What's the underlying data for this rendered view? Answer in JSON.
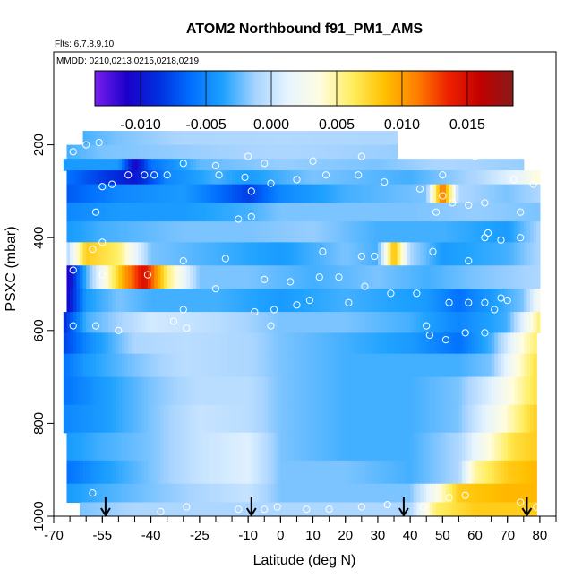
{
  "chart_data": {
    "type": "heatmap",
    "title": "ATOM2 Northbound f91_PM1_AMS",
    "flights_label": "Flts: 6,7,8,9,10",
    "dates_label": "MMDD: 0210,0213,0215,0218,0219",
    "xlabel": "Latitude (deg N)",
    "ylabel": "PSXC (mbar)",
    "xlim": [
      -70,
      85
    ],
    "ylim": [
      1000,
      0
    ],
    "x_tick_labels": [
      "-70",
      "-55",
      "-40",
      "-25",
      "-10",
      "0",
      "10",
      "20",
      "30",
      "40",
      "50",
      "60",
      "70",
      "80"
    ],
    "y_tick_labels": [
      "200",
      "400",
      "600",
      "800",
      "1000"
    ],
    "colorbar": {
      "range": [
        -0.0135,
        0.0185
      ],
      "tick_labels": [
        "-0.010",
        "-0.005",
        "0.000",
        "0.005",
        "0.010",
        "0.015"
      ],
      "colors": [
        "#7a1ef0",
        "#1a00c8",
        "#0030e0",
        "#0070ff",
        "#1fa2ff",
        "#a8d4ff",
        "#e6f4ff",
        "#fffde0",
        "#ffee60",
        "#ffc000",
        "#ff8000",
        "#ee2000",
        "#c00000",
        "#8a1a1a"
      ]
    },
    "arrow_latitudes": [
      -54,
      -9,
      38,
      76
    ],
    "pressure_bands": [
      {
        "p_top": 170,
        "p_bot": 200,
        "x_min": -61,
        "x_max": 36,
        "points": [
          [
            -61,
            -0.003
          ],
          [
            -50,
            -0.002
          ],
          [
            -30,
            -0.001
          ],
          [
            0,
            -0.0008
          ],
          [
            36,
            -0.001
          ]
        ]
      },
      {
        "p_top": 200,
        "p_bot": 230,
        "x_min": -66,
        "x_max": 36,
        "points": [
          [
            -66,
            -0.003
          ],
          [
            -55,
            -0.002
          ],
          [
            -30,
            -0.0015
          ],
          [
            0,
            -0.001
          ],
          [
            36,
            -0.0015
          ]
        ]
      },
      {
        "p_top": 230,
        "p_bot": 255,
        "x_min": -67,
        "x_max": 75,
        "points": [
          [
            -67,
            -0.004
          ],
          [
            -50,
            -0.004
          ],
          [
            -45,
            -0.011
          ],
          [
            -40,
            -0.006
          ],
          [
            -25,
            -0.0025
          ],
          [
            0,
            -0.0015
          ],
          [
            30,
            -0.002
          ],
          [
            50,
            -0.001
          ],
          [
            75,
            -0.0015
          ]
        ]
      },
      {
        "p_top": 255,
        "p_bot": 285,
        "x_min": -66,
        "x_max": 80,
        "points": [
          [
            -66,
            -0.006
          ],
          [
            -45,
            -0.01
          ],
          [
            -35,
            -0.005
          ],
          [
            -20,
            -0.003
          ],
          [
            -10,
            -0.004
          ],
          [
            10,
            -0.002
          ],
          [
            40,
            -0.003
          ],
          [
            60,
            -0.001
          ],
          [
            75,
            0.002
          ],
          [
            80,
            0.004
          ]
        ]
      },
      {
        "p_top": 285,
        "p_bot": 325,
        "x_min": -66,
        "x_max": 80,
        "points": [
          [
            -66,
            -0.007
          ],
          [
            -50,
            -0.005
          ],
          [
            -30,
            -0.004
          ],
          [
            -10,
            -0.008
          ],
          [
            0,
            -0.005
          ],
          [
            20,
            -0.003
          ],
          [
            45,
            -0.002
          ],
          [
            50,
            0.012
          ],
          [
            55,
            -0.001
          ],
          [
            70,
            -0.002
          ],
          [
            80,
            -0.001
          ]
        ]
      },
      {
        "p_top": 325,
        "p_bot": 365,
        "x_min": -66,
        "x_max": 80,
        "points": [
          [
            -66,
            -0.005
          ],
          [
            -50,
            -0.004
          ],
          [
            -30,
            -0.004
          ],
          [
            -10,
            -0.003
          ],
          [
            0,
            -0.002
          ],
          [
            20,
            -0.002
          ],
          [
            40,
            -0.002
          ],
          [
            60,
            -0.0015
          ],
          [
            80,
            -0.002
          ]
        ]
      },
      {
        "p_top": 365,
        "p_bot": 410,
        "x_min": -66,
        "x_max": 80,
        "points": [
          [
            -66,
            -0.004
          ],
          [
            -55,
            -0.003
          ],
          [
            -30,
            -0.002
          ],
          [
            -10,
            -0.002
          ],
          [
            10,
            -0.0015
          ],
          [
            30,
            -0.003
          ],
          [
            50,
            -0.003
          ],
          [
            70,
            -0.004
          ],
          [
            80,
            -0.001
          ]
        ]
      },
      {
        "p_top": 410,
        "p_bot": 460,
        "x_min": -66,
        "x_max": 80,
        "points": [
          [
            -66,
            -0.001
          ],
          [
            -60,
            0.008
          ],
          [
            -50,
            0.006
          ],
          [
            -40,
            -0.002
          ],
          [
            -20,
            -0.003
          ],
          [
            0,
            -0.004
          ],
          [
            20,
            -0.002
          ],
          [
            30,
            -0.003
          ],
          [
            35,
            0.009
          ],
          [
            40,
            -0.001
          ],
          [
            50,
            -0.004
          ],
          [
            70,
            -0.003
          ],
          [
            80,
            -0.001
          ]
        ]
      },
      {
        "p_top": 460,
        "p_bot": 510,
        "x_min": -66,
        "x_max": 80,
        "points": [
          [
            -66,
            -0.012
          ],
          [
            -60,
            -0.003
          ],
          [
            -48,
            0.01
          ],
          [
            -42,
            0.015
          ],
          [
            -35,
            0.006
          ],
          [
            -25,
            -0.002
          ],
          [
            -10,
            -0.002
          ],
          [
            10,
            -0.003
          ],
          [
            30,
            -0.002
          ],
          [
            45,
            -0.003
          ],
          [
            60,
            -0.002
          ],
          [
            80,
            -0.001
          ]
        ]
      },
      {
        "p_top": 510,
        "p_bot": 560,
        "x_min": -66,
        "x_max": 80,
        "points": [
          [
            -66,
            -0.011
          ],
          [
            -60,
            -0.004
          ],
          [
            -50,
            -0.002
          ],
          [
            -40,
            -0.003
          ],
          [
            -20,
            -0.003
          ],
          [
            0,
            -0.004
          ],
          [
            20,
            -0.003
          ],
          [
            45,
            -0.004
          ],
          [
            55,
            -0.006
          ],
          [
            65,
            -0.004
          ],
          [
            75,
            -0.002
          ],
          [
            80,
            0.003
          ]
        ]
      },
      {
        "p_top": 560,
        "p_bot": 605,
        "x_min": -67,
        "x_max": 80,
        "points": [
          [
            -67,
            -0.009
          ],
          [
            -60,
            -0.003
          ],
          [
            -40,
            0.0005
          ],
          [
            -20,
            -0.0005
          ],
          [
            0,
            -0.002
          ],
          [
            20,
            -0.002
          ],
          [
            40,
            -0.003
          ],
          [
            55,
            -0.005
          ],
          [
            70,
            -0.003
          ],
          [
            78,
            0.004
          ],
          [
            80,
            0.006
          ]
        ]
      },
      {
        "p_top": 605,
        "p_bot": 650,
        "x_min": -67,
        "x_max": 79,
        "points": [
          [
            -67,
            -0.008
          ],
          [
            -60,
            -0.005
          ],
          [
            -45,
            -0.001
          ],
          [
            -30,
            -0.0005
          ],
          [
            -10,
            -0.001
          ],
          [
            0,
            -0.002
          ],
          [
            20,
            -0.003
          ],
          [
            40,
            -0.004
          ],
          [
            55,
            -0.006
          ],
          [
            65,
            -0.003
          ],
          [
            75,
            0.004
          ],
          [
            79,
            0.006
          ]
        ]
      },
      {
        "p_top": 650,
        "p_bot": 700,
        "x_min": -67,
        "x_max": 79,
        "points": [
          [
            -67,
            -0.006
          ],
          [
            -60,
            -0.004
          ],
          [
            -45,
            -0.002
          ],
          [
            -30,
            -0.0005
          ],
          [
            -10,
            -0.001
          ],
          [
            0,
            -0.002
          ],
          [
            20,
            -0.003
          ],
          [
            40,
            -0.003
          ],
          [
            55,
            -0.003
          ],
          [
            65,
            -0.002
          ],
          [
            72,
            0.003
          ],
          [
            79,
            0.007
          ]
        ]
      },
      {
        "p_top": 700,
        "p_bot": 760,
        "x_min": -67,
        "x_max": 79,
        "points": [
          [
            -67,
            -0.006
          ],
          [
            -55,
            -0.004
          ],
          [
            -40,
            -0.002
          ],
          [
            -25,
            -0.0005
          ],
          [
            -10,
            -0.0005
          ],
          [
            0,
            -0.002
          ],
          [
            20,
            -0.003
          ],
          [
            40,
            -0.003
          ],
          [
            55,
            -0.002
          ],
          [
            65,
            0.001
          ],
          [
            72,
            0.004
          ],
          [
            79,
            0.007
          ]
        ]
      },
      {
        "p_top": 760,
        "p_bot": 820,
        "x_min": -67,
        "x_max": 79,
        "points": [
          [
            -67,
            -0.005
          ],
          [
            -55,
            -0.004
          ],
          [
            -40,
            -0.002
          ],
          [
            -25,
            0.0
          ],
          [
            -10,
            -0.0005
          ],
          [
            0,
            -0.002
          ],
          [
            20,
            -0.003
          ],
          [
            40,
            -0.003
          ],
          [
            55,
            -0.002
          ],
          [
            65,
            0.002
          ],
          [
            72,
            0.005
          ],
          [
            79,
            0.008
          ]
        ]
      },
      {
        "p_top": 820,
        "p_bot": 880,
        "x_min": -66,
        "x_max": 79,
        "points": [
          [
            -66,
            -0.004
          ],
          [
            -55,
            -0.003
          ],
          [
            -40,
            -0.002
          ],
          [
            -25,
            0.0
          ],
          [
            -10,
            0.001
          ],
          [
            0,
            -0.002
          ],
          [
            20,
            -0.003
          ],
          [
            40,
            -0.003
          ],
          [
            55,
            -0.001
          ],
          [
            65,
            0.004
          ],
          [
            72,
            0.007
          ],
          [
            79,
            0.008
          ]
        ]
      },
      {
        "p_top": 880,
        "p_bot": 930,
        "x_min": -66,
        "x_max": 79,
        "points": [
          [
            -66,
            -0.006
          ],
          [
            -55,
            -0.004
          ],
          [
            -40,
            -0.002
          ],
          [
            -25,
            0.0
          ],
          [
            -10,
            0.001
          ],
          [
            0,
            -0.002
          ],
          [
            20,
            -0.002
          ],
          [
            40,
            -0.003
          ],
          [
            55,
            -0.001
          ],
          [
            60,
            0.005
          ],
          [
            70,
            0.008
          ],
          [
            79,
            0.009
          ]
        ]
      },
      {
        "p_top": 930,
        "p_bot": 970,
        "x_min": -66,
        "x_max": 79,
        "points": [
          [
            -66,
            -0.004
          ],
          [
            -55,
            -0.003
          ],
          [
            -40,
            -0.002
          ],
          [
            -25,
            -0.001
          ],
          [
            -10,
            0.0
          ],
          [
            0,
            -0.002
          ],
          [
            20,
            -0.002
          ],
          [
            40,
            -0.002
          ],
          [
            48,
            0.003
          ],
          [
            55,
            0.008
          ],
          [
            70,
            0.009
          ],
          [
            79,
            0.009
          ]
        ]
      },
      {
        "p_top": 970,
        "p_bot": 1000,
        "x_min": -62,
        "x_max": 79,
        "points": [
          [
            -62,
            -0.002
          ],
          [
            -45,
            -0.001
          ],
          [
            -25,
            -0.001
          ],
          [
            -10,
            -0.001
          ],
          [
            0,
            -0.001
          ],
          [
            20,
            -0.001
          ],
          [
            40,
            -0.001
          ],
          [
            48,
            0.006
          ],
          [
            60,
            0.008
          ],
          [
            79,
            0.008
          ]
        ]
      }
    ],
    "sample_points": [
      [
        -60,
        200
      ],
      [
        -64,
        215
      ],
      [
        -56,
        195
      ],
      [
        -30,
        240
      ],
      [
        -20,
        245
      ],
      [
        -10,
        225
      ],
      [
        -5,
        240
      ],
      [
        10,
        235
      ],
      [
        25,
        225
      ],
      [
        45,
        200
      ],
      [
        60,
        225
      ],
      [
        -35,
        265
      ],
      [
        -47,
        265
      ],
      [
        -42,
        265
      ],
      [
        -39,
        265
      ],
      [
        -19,
        265
      ],
      [
        -11,
        270
      ],
      [
        -3,
        283
      ],
      [
        5,
        275
      ],
      [
        14,
        265
      ],
      [
        24,
        265
      ],
      [
        32,
        280
      ],
      [
        50,
        265
      ],
      [
        72,
        275
      ],
      [
        78,
        285
      ],
      [
        -52,
        285
      ],
      [
        -55,
        290
      ],
      [
        -9,
        300
      ],
      [
        43,
        295
      ],
      [
        50,
        310
      ],
      [
        53,
        325
      ],
      [
        58,
        330
      ],
      [
        63,
        325
      ],
      [
        -57,
        345
      ],
      [
        -9,
        355
      ],
      [
        -13,
        360
      ],
      [
        63,
        400
      ],
      [
        64,
        390
      ],
      [
        48,
        345
      ],
      [
        74,
        345
      ],
      [
        68,
        405
      ],
      [
        74,
        400
      ],
      [
        -55,
        410
      ],
      [
        -58,
        425
      ],
      [
        -30,
        450
      ],
      [
        -17,
        445
      ],
      [
        13,
        430
      ],
      [
        25,
        440
      ],
      [
        29,
        440
      ],
      [
        47,
        430
      ],
      [
        58,
        450
      ],
      [
        -64,
        470
      ],
      [
        -55,
        480
      ],
      [
        -41,
        480
      ],
      [
        -20,
        510
      ],
      [
        -5,
        490
      ],
      [
        3,
        495
      ],
      [
        12,
        485
      ],
      [
        18,
        485
      ],
      [
        26,
        505
      ],
      [
        34,
        520
      ],
      [
        -30,
        555
      ],
      [
        -8,
        560
      ],
      [
        -2,
        555
      ],
      [
        5,
        545
      ],
      [
        9,
        535
      ],
      [
        21,
        540
      ],
      [
        42,
        520
      ],
      [
        52,
        540
      ],
      [
        58,
        540
      ],
      [
        63,
        540
      ],
      [
        66,
        555
      ],
      [
        68,
        530
      ],
      [
        70,
        535
      ],
      [
        -64,
        590
      ],
      [
        -57,
        590
      ],
      [
        -50,
        600
      ],
      [
        -33,
        580
      ],
      [
        -29,
        595
      ],
      [
        -3,
        590
      ],
      [
        45,
        590
      ],
      [
        46,
        610
      ],
      [
        51,
        620
      ],
      [
        57,
        605
      ],
      [
        63,
        605
      ],
      [
        -58,
        950
      ],
      [
        -37,
        990
      ],
      [
        -29,
        980
      ],
      [
        -13,
        985
      ],
      [
        -5,
        985
      ],
      [
        -1,
        980
      ],
      [
        8,
        985
      ],
      [
        15,
        985
      ],
      [
        25,
        980
      ],
      [
        33,
        975
      ],
      [
        44,
        980
      ],
      [
        52,
        960
      ],
      [
        57,
        955
      ],
      [
        74,
        970
      ],
      [
        79,
        980
      ]
    ]
  }
}
